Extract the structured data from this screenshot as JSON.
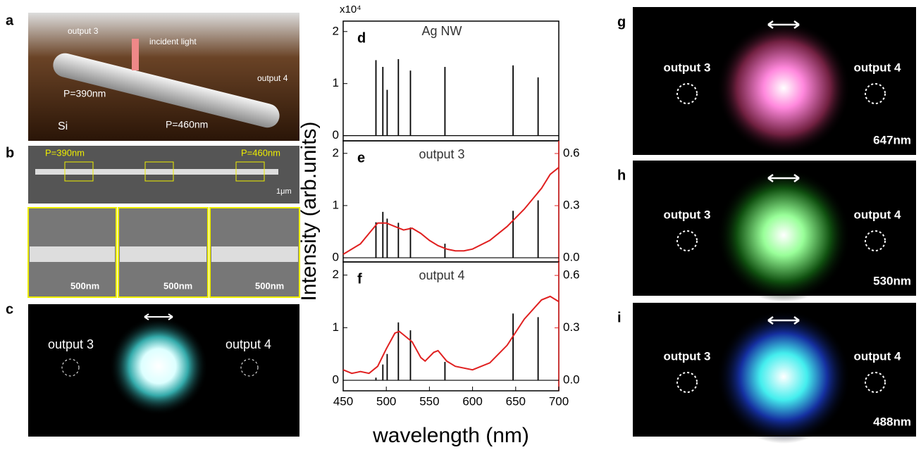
{
  "panel_a": {
    "label": "a",
    "output_3": "output 3",
    "incident_light": "incident light",
    "output_4": "output 4",
    "period_1": "P=390nm",
    "period_2": "P=460nm",
    "substrate": "Si"
  },
  "panel_b": {
    "label": "b",
    "period_1": "P=390nm",
    "period_2": "P=460nm",
    "scale_bar": "1μm",
    "zoom_scale_bars": [
      "500nm",
      "500nm",
      "500nm"
    ]
  },
  "panel_c": {
    "label": "c",
    "output_3": "output 3",
    "output_4": "output 4"
  },
  "shared_axes": {
    "multiplier": "x10⁴",
    "y_label": "Intensity (arb.units)",
    "x_label": "wavelength (nm)"
  },
  "chart_data": [
    {
      "type": "line",
      "panel_label": "d",
      "title": "Ag NW",
      "xlim": [
        450,
        700
      ],
      "ylim": [
        -0.1,
        2.2
      ],
      "yticks": [
        0,
        1,
        2
      ],
      "series": [
        {
          "style": "stem",
          "color": "#000000",
          "x": [
            488,
            496,
            501,
            514,
            528,
            568,
            647,
            676
          ],
          "values": [
            1.45,
            1.32,
            0.88,
            1.47,
            1.25,
            1.32,
            1.35,
            1.12
          ]
        }
      ]
    },
    {
      "type": "line",
      "panel_label": "e",
      "title": "output 3",
      "xlim": [
        450,
        700
      ],
      "ylim": [
        -0.08,
        2.24
      ],
      "yticks": [
        0,
        1,
        2
      ],
      "y2lim": [
        -0.024,
        0.673
      ],
      "y2ticks": [
        {
          "value": 0,
          "label": "0.0"
        },
        0.3,
        0.6
      ],
      "series": [
        {
          "style": "stem",
          "color": "#000000",
          "x": [
            488,
            496,
            501,
            514,
            528,
            568,
            647,
            676
          ],
          "values": [
            0.68,
            0.88,
            0.75,
            0.67,
            0.58,
            0.27,
            0.9,
            1.1
          ]
        },
        {
          "style": "curve",
          "color": "#e02020",
          "axis": "y2",
          "x": [
            450,
            470,
            480,
            490,
            500,
            510,
            520,
            530,
            540,
            550,
            560,
            570,
            580,
            590,
            600,
            620,
            640,
            660,
            680,
            690,
            700
          ],
          "values": [
            0.02,
            0.08,
            0.14,
            0.2,
            0.2,
            0.18,
            0.16,
            0.17,
            0.14,
            0.1,
            0.07,
            0.05,
            0.04,
            0.04,
            0.05,
            0.1,
            0.18,
            0.28,
            0.4,
            0.48,
            0.52
          ]
        }
      ]
    },
    {
      "type": "line",
      "panel_label": "f",
      "title": "output 4",
      "xlim": [
        450,
        700
      ],
      "ylim": [
        -0.2,
        2.25
      ],
      "yticks": [
        0,
        1,
        2
      ],
      "xticks": [
        450,
        500,
        550,
        600,
        650,
        700
      ],
      "y2lim": [
        -0.06,
        0.677
      ],
      "y2ticks": [
        {
          "value": 0,
          "label": "0.0"
        },
        0.3,
        0.6
      ],
      "series": [
        {
          "style": "stem",
          "color": "#000000",
          "x": [
            488,
            496,
            501,
            514,
            528,
            568,
            647,
            676
          ],
          "values": [
            0.05,
            0.3,
            0.5,
            1.1,
            0.95,
            0.35,
            1.27,
            1.2
          ]
        },
        {
          "style": "curve",
          "color": "#e02020",
          "axis": "y2",
          "x": [
            450,
            460,
            470,
            480,
            490,
            500,
            510,
            515,
            520,
            530,
            540,
            545,
            555,
            560,
            570,
            580,
            600,
            620,
            640,
            660,
            680,
            690,
            700
          ],
          "values": [
            0.06,
            0.04,
            0.05,
            0.04,
            0.08,
            0.18,
            0.27,
            0.28,
            0.26,
            0.22,
            0.13,
            0.11,
            0.16,
            0.17,
            0.11,
            0.08,
            0.06,
            0.1,
            0.2,
            0.35,
            0.46,
            0.48,
            0.45
          ]
        }
      ]
    }
  ],
  "panels_right": [
    {
      "label": "g",
      "output_3": "output 3",
      "output_4": "output 4",
      "wavelength": "647nm"
    },
    {
      "label": "h",
      "output_3": "output 3",
      "output_4": "output 4",
      "wavelength": "530nm"
    },
    {
      "label": "i",
      "output_3": "output 3",
      "output_4": "output 4",
      "wavelength": "488nm"
    }
  ]
}
